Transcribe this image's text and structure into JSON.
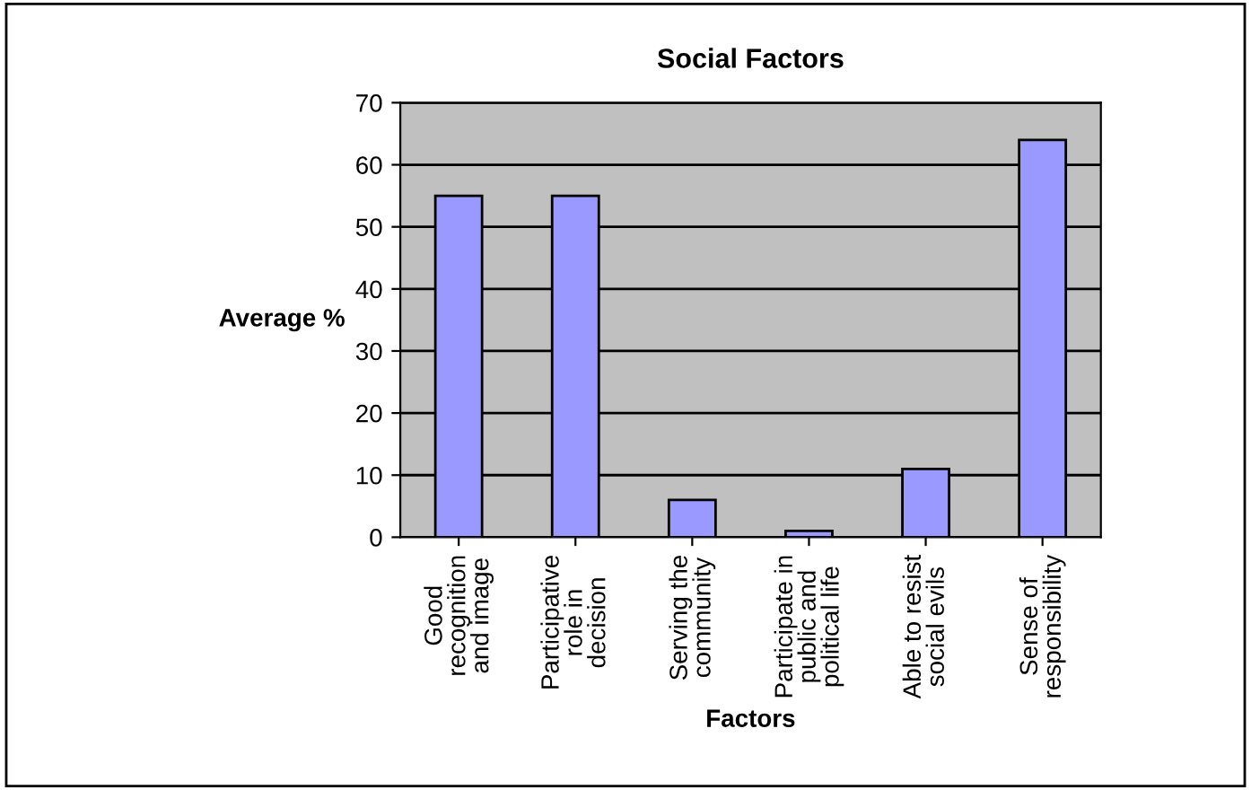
{
  "chart_data": {
    "type": "bar",
    "title": "Social Factors",
    "xlabel": "Factors",
    "ylabel": "Average %",
    "categories": [
      "Good\nrecognition\nand image",
      "Participative\nrole in\ndecision",
      "Serving the\ncommunity",
      "Participate in\npublic and\npolitical life",
      "Able to resist\nsocial evils",
      "Sense of\nresponsibility"
    ],
    "values": [
      55,
      55,
      6,
      1,
      11,
      64
    ],
    "color": "#9999ff",
    "ylim": [
      0,
      70
    ],
    "yticks": [
      0,
      10,
      20,
      30,
      40,
      50,
      60,
      70
    ],
    "grid": "y",
    "legend": false
  }
}
